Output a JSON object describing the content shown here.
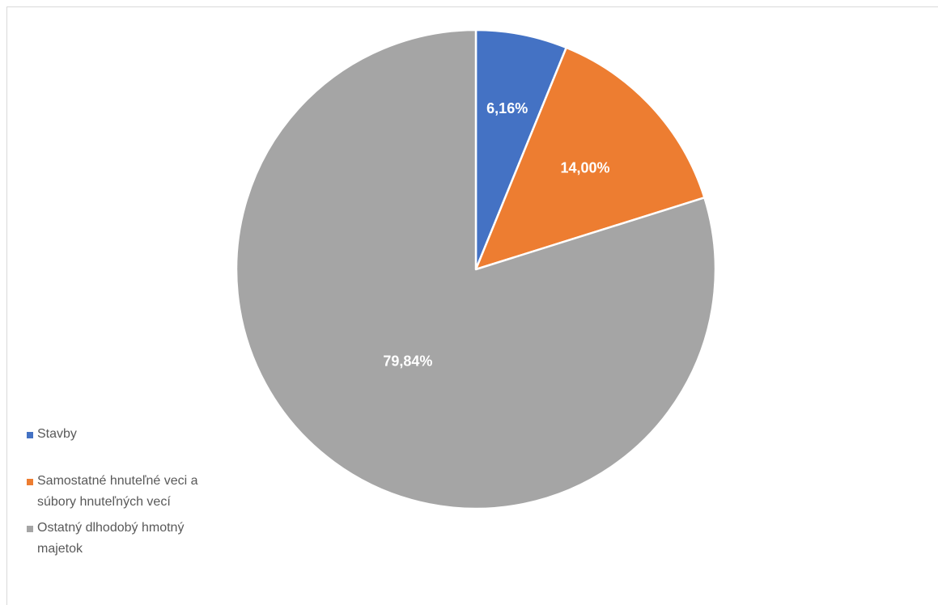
{
  "chart_data": {
    "type": "pie",
    "title": "",
    "slices": [
      {
        "label": "Stavby",
        "value": 6.16,
        "display": "6,16%",
        "color": "#4472C4"
      },
      {
        "label": "Samostatné hnuteľné veci a súbory hnuteľných vecí",
        "value": 14.0,
        "display": "14,00%",
        "color": "#ED7D31"
      },
      {
        "label": "Ostatný dlhodobý hmotný majetok",
        "value": 79.84,
        "display": "79,84%",
        "color": "#A5A5A5"
      }
    ],
    "legend_position": "left",
    "start_angle": "12 o'clock, clockwise"
  },
  "legend": {
    "items": [
      {
        "line1": "Stavby",
        "line2": ""
      },
      {
        "line1": "Samostatné hnuteľné veci a",
        "line2": "súbory hnuteľných vecí"
      },
      {
        "line1": "Ostatný dlhodobý hmotný",
        "line2": "majetok"
      }
    ]
  }
}
